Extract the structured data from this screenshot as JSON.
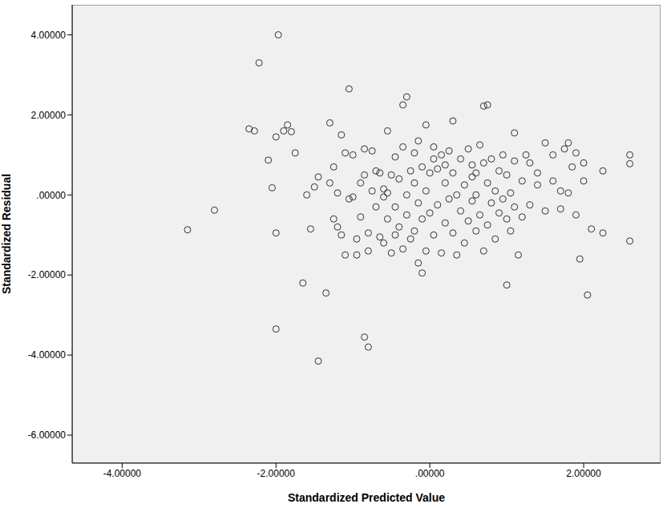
{
  "chart_data": {
    "type": "scatter",
    "x_label": "Standardized Predicted Value",
    "y_label": "Standardized Residual",
    "color": "#333333",
    "marker": "open_circle",
    "grid": false,
    "xlim": [
      -4.65,
      3.0
    ],
    "ylim": [
      -6.7,
      4.75
    ],
    "xticks": [
      {
        "value": -4,
        "label": "-4.00000"
      },
      {
        "value": -2,
        "label": "-2.00000"
      },
      {
        "value": 0,
        "label": ".00000"
      },
      {
        "value": 2,
        "label": "2.00000"
      }
    ],
    "yticks": [
      {
        "value": -6,
        "label": "-6.00000"
      },
      {
        "value": -4,
        "label": "-4.00000"
      },
      {
        "value": -2,
        "label": "-2.00000"
      },
      {
        "value": 0,
        "label": ".00000"
      },
      {
        "value": 2,
        "label": "2.00000"
      },
      {
        "value": 4,
        "label": "4.00000"
      }
    ],
    "x": [
      -1.97,
      -2.22,
      -2.35,
      -2.28,
      -2.1,
      -2.0,
      -1.9,
      -1.85,
      -1.8,
      -2.05,
      -2.0,
      -3.15,
      -2.8,
      -2.0,
      -1.65,
      -1.35,
      -1.05,
      -0.85,
      -0.8,
      -1.45,
      -0.3,
      -0.35,
      0.75,
      0.7,
      0.3,
      1.1,
      2.6,
      2.6,
      2.6,
      2.25,
      2.1,
      2.25,
      1.95,
      2.05,
      1.0,
      -0.1,
      -0.15,
      1.15,
      -1.75,
      -1.6,
      -1.55,
      -1.5,
      -1.45,
      -1.3,
      -1.25,
      -1.2,
      -1.25,
      -1.15,
      -1.1,
      -1.05,
      -1.0,
      -1.0,
      -0.95,
      -0.95,
      -0.9,
      -0.85,
      -0.85,
      -0.8,
      -0.8,
      -1.2,
      -1.15,
      -1.3,
      -0.75,
      -0.75,
      -0.7,
      -0.7,
      -0.65,
      -0.65,
      -0.6,
      -0.6,
      -0.55,
      -0.55,
      -0.5,
      -0.5,
      -0.45,
      -0.45,
      -0.4,
      -0.4,
      -0.35,
      -0.35,
      -0.3,
      -0.3,
      -0.25,
      -0.25,
      -0.2,
      -0.2,
      -0.15,
      -0.15,
      -0.1,
      -0.1,
      -0.05,
      -0.05,
      0.0,
      0.0,
      0.05,
      0.05,
      0.1,
      0.1,
      0.15,
      0.15,
      0.2,
      0.2,
      0.25,
      0.25,
      0.3,
      0.3,
      0.35,
      0.35,
      0.4,
      0.4,
      0.45,
      0.45,
      0.5,
      0.5,
      0.55,
      0.55,
      0.6,
      0.6,
      0.65,
      0.65,
      0.7,
      0.7,
      0.75,
      0.75,
      0.8,
      0.8,
      0.85,
      0.85,
      0.9,
      0.9,
      0.95,
      0.95,
      1.0,
      1.0,
      1.05,
      1.05,
      1.1,
      1.1,
      1.2,
      1.2,
      1.3,
      1.3,
      1.4,
      1.4,
      1.5,
      1.5,
      1.6,
      1.6,
      1.7,
      1.7,
      1.75,
      1.8,
      1.8,
      1.85,
      1.9,
      1.9,
      2.0,
      2.0,
      -0.55,
      -0.6,
      -0.05,
      0.2,
      0.55,
      -0.9,
      -1.1,
      -0.2,
      0.6,
      0.05,
      -0.45,
      1.25
    ],
    "values": [
      4.0,
      3.3,
      1.65,
      1.6,
      0.87,
      1.45,
      1.6,
      1.75,
      1.58,
      0.18,
      -0.95,
      -0.87,
      -0.38,
      -3.35,
      -2.2,
      -2.45,
      2.65,
      -3.55,
      -3.8,
      -4.15,
      2.45,
      2.25,
      2.25,
      2.22,
      1.85,
      1.55,
      1.0,
      0.78,
      -1.15,
      0.6,
      -0.85,
      -0.95,
      -1.6,
      -2.5,
      -2.25,
      -1.95,
      -1.7,
      -1.5,
      1.05,
      0.0,
      -0.85,
      0.2,
      0.45,
      1.8,
      0.7,
      0.05,
      -0.6,
      1.5,
      1.05,
      -0.1,
      1.0,
      -0.05,
      -1.1,
      -1.5,
      -0.55,
      1.15,
      0.5,
      -0.95,
      -1.4,
      -0.8,
      -1.0,
      0.3,
      1.1,
      0.1,
      -0.3,
      0.6,
      -1.05,
      0.55,
      -1.2,
      0.15,
      1.6,
      -0.6,
      0.5,
      -1.45,
      0.95,
      -0.3,
      0.4,
      -0.8,
      1.2,
      -1.35,
      0.0,
      -0.5,
      0.6,
      -1.1,
      0.3,
      -0.9,
      1.35,
      -0.2,
      0.7,
      -0.6,
      1.75,
      0.1,
      -0.45,
      0.55,
      1.2,
      -1.0,
      0.65,
      -0.25,
      1.0,
      -1.45,
      0.3,
      -0.7,
      1.1,
      -0.1,
      0.55,
      -0.95,
      0.0,
      -1.5,
      0.9,
      -0.4,
      0.25,
      -1.2,
      1.15,
      -0.65,
      0.45,
      -0.15,
      0.0,
      -0.9,
      1.25,
      -0.5,
      0.8,
      -1.4,
      0.3,
      -0.75,
      0.9,
      -0.2,
      0.1,
      -1.1,
      0.6,
      -0.45,
      1.0,
      -0.1,
      0.5,
      -0.6,
      0.05,
      -0.9,
      0.85,
      -0.3,
      0.35,
      -0.55,
      0.8,
      -0.25,
      0.25,
      0.55,
      1.3,
      -0.4,
      0.35,
      1.0,
      0.1,
      -0.35,
      1.15,
      1.3,
      0.05,
      0.7,
      1.05,
      -0.5,
      0.35,
      0.8,
      0.05,
      -0.05,
      -1.4,
      0.75,
      0.75,
      0.3,
      -1.5,
      1.05,
      0.55,
      0.9,
      -1.0,
      1.0
    ]
  }
}
